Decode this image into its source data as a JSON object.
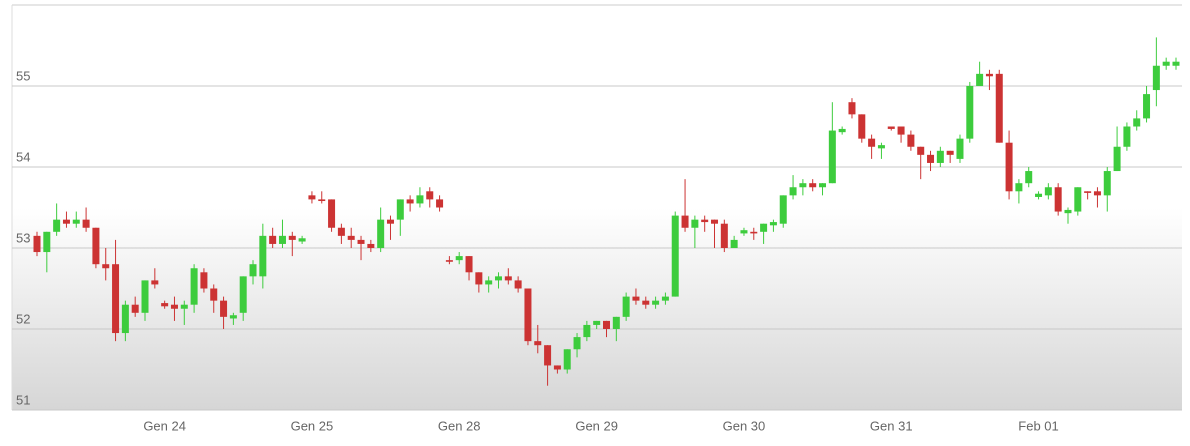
{
  "chart_data": {
    "type": "candlestick",
    "categories": [
      null,
      null,
      null,
      null,
      null,
      null,
      null,
      null,
      null,
      null,
      null,
      null,
      null,
      "Gen 24",
      null,
      null,
      null,
      null,
      null,
      null,
      null,
      null,
      null,
      null,
      null,
      null,
      null,
      null,
      "Gen 25",
      null,
      null,
      null,
      null,
      null,
      null,
      null,
      null,
      null,
      null,
      null,
      null,
      null,
      null,
      "Gen 28",
      null,
      null,
      null,
      null,
      null,
      null,
      null,
      null,
      null,
      null,
      null,
      null,
      null,
      "Gen 29",
      null,
      null,
      null,
      null,
      null,
      null,
      null,
      null,
      null,
      null,
      null,
      null,
      null,
      null,
      "Gen 30",
      null,
      null,
      null,
      null,
      null,
      null,
      null,
      null,
      null,
      null,
      null,
      null,
      null,
      null,
      "Gen 31",
      null,
      null,
      null,
      null,
      null,
      null,
      null,
      null,
      null,
      null,
      null,
      null,
      null,
      null,
      "Feb 01",
      null,
      null,
      null,
      null,
      null,
      null,
      null,
      null,
      null,
      null,
      null,
      null,
      null,
      null
    ],
    "open": [
      53.15,
      52.95,
      53.2,
      53.35,
      53.3,
      53.35,
      53.25,
      52.8,
      52.8,
      51.95,
      52.3,
      52.2,
      52.6,
      52.32,
      52.3,
      52.25,
      52.3,
      52.7,
      52.5,
      52.35,
      52.13,
      52.2,
      52.65,
      52.65,
      53.15,
      53.05,
      53.15,
      53.08,
      53.65,
      53.6,
      53.6,
      53.25,
      53.15,
      53.1,
      53.05,
      53.0,
      53.35,
      53.35,
      53.6,
      53.55,
      53.7,
      53.6,
      52.85,
      52.85,
      52.9,
      52.7,
      52.55,
      52.6,
      52.65,
      52.6,
      52.5,
      51.85,
      51.8,
      51.55,
      51.5,
      51.75,
      51.9,
      52.05,
      52.1,
      52.0,
      52.15,
      52.4,
      52.35,
      52.3,
      52.35,
      52.4,
      53.4,
      53.25,
      53.35,
      53.35,
      53.3,
      53.0,
      53.18,
      53.2,
      53.2,
      53.28,
      53.3,
      53.65,
      53.75,
      53.8,
      53.75,
      53.8,
      54.43,
      54.8,
      54.65,
      54.35,
      54.23,
      54.5,
      54.5,
      54.4,
      54.25,
      54.15,
      54.05,
      54.2,
      54.1,
      54.35,
      55.0,
      55.15,
      55.15,
      54.3,
      53.7,
      53.8,
      53.63,
      53.65,
      53.75,
      53.43,
      53.45,
      53.7,
      53.7,
      53.65,
      53.95,
      54.25,
      54.5,
      54.6,
      54.95,
      55.25,
      55.25
    ],
    "high": [
      53.2,
      53.2,
      53.55,
      53.45,
      53.45,
      53.5,
      53.25,
      53.0,
      53.1,
      52.35,
      52.4,
      52.6,
      52.75,
      52.35,
      52.4,
      52.35,
      52.8,
      52.75,
      52.55,
      52.4,
      52.2,
      52.65,
      52.85,
      53.3,
      53.25,
      53.35,
      53.2,
      53.15,
      53.7,
      53.7,
      53.6,
      53.3,
      53.25,
      53.15,
      53.1,
      53.5,
      53.4,
      53.6,
      53.65,
      53.75,
      53.75,
      53.65,
      52.9,
      52.95,
      52.9,
      52.7,
      52.65,
      52.7,
      52.75,
      52.65,
      52.5,
      52.05,
      51.8,
      51.55,
      51.75,
      51.95,
      52.1,
      52.1,
      52.1,
      52.15,
      52.45,
      52.5,
      52.4,
      52.4,
      52.45,
      53.45,
      53.85,
      53.4,
      53.4,
      53.35,
      53.35,
      53.15,
      53.25,
      53.25,
      53.3,
      53.35,
      53.65,
      53.9,
      53.85,
      53.85,
      53.8,
      54.8,
      54.5,
      54.85,
      54.65,
      54.4,
      54.3,
      54.5,
      54.5,
      54.45,
      54.25,
      54.2,
      54.25,
      54.2,
      54.4,
      55.05,
      55.3,
      55.2,
      55.2,
      54.45,
      53.85,
      54.0,
      53.7,
      53.8,
      53.8,
      53.5,
      53.75,
      53.7,
      53.75,
      54.0,
      54.5,
      54.55,
      54.7,
      55.0,
      55.6,
      55.35,
      55.35
    ],
    "low": [
      52.9,
      52.7,
      53.15,
      53.25,
      53.25,
      53.2,
      52.75,
      52.6,
      51.85,
      51.85,
      52.15,
      52.1,
      52.5,
      52.25,
      52.1,
      52.05,
      52.2,
      52.45,
      52.2,
      52.0,
      52.05,
      52.1,
      52.55,
      52.5,
      53.0,
      53.0,
      52.9,
      53.05,
      53.55,
      53.55,
      53.2,
      53.05,
      53.0,
      52.85,
      52.95,
      52.95,
      53.1,
      53.15,
      53.45,
      53.5,
      53.5,
      53.45,
      52.8,
      52.8,
      52.6,
      52.45,
      52.45,
      52.5,
      52.55,
      52.45,
      51.8,
      51.7,
      51.3,
      51.45,
      51.45,
      51.65,
      51.85,
      52.0,
      51.9,
      51.85,
      52.1,
      52.3,
      52.25,
      52.25,
      52.3,
      52.4,
      53.2,
      53.0,
      53.2,
      53.0,
      52.95,
      53.0,
      53.15,
      53.1,
      53.05,
      53.2,
      53.25,
      53.6,
      53.65,
      53.7,
      53.65,
      53.8,
      54.4,
      54.6,
      54.3,
      54.1,
      54.1,
      54.45,
      54.3,
      54.2,
      53.85,
      53.95,
      54.0,
      54.05,
      54.05,
      54.3,
      55.0,
      54.95,
      54.3,
      53.6,
      53.55,
      53.75,
      53.6,
      53.6,
      53.4,
      53.3,
      53.4,
      53.6,
      53.5,
      53.45,
      53.95,
      54.2,
      54.45,
      54.55,
      54.75,
      55.2,
      55.2
    ],
    "close": [
      52.95,
      53.2,
      53.35,
      53.3,
      53.35,
      53.25,
      52.8,
      52.75,
      51.95,
      52.3,
      52.2,
      52.6,
      52.55,
      52.28,
      52.25,
      52.3,
      52.75,
      52.5,
      52.35,
      52.15,
      52.17,
      52.65,
      52.8,
      53.15,
      53.05,
      53.15,
      53.1,
      53.12,
      53.6,
      53.58,
      53.25,
      53.15,
      53.1,
      53.05,
      53.0,
      53.35,
      53.3,
      53.6,
      53.55,
      53.65,
      53.6,
      53.5,
      52.83,
      52.9,
      52.7,
      52.55,
      52.6,
      52.65,
      52.6,
      52.5,
      51.85,
      51.8,
      51.55,
      51.5,
      51.75,
      51.9,
      52.05,
      52.1,
      52.0,
      52.15,
      52.4,
      52.35,
      52.3,
      52.35,
      52.4,
      53.4,
      53.25,
      53.35,
      53.32,
      53.3,
      53.0,
      53.1,
      53.22,
      53.18,
      53.3,
      53.32,
      53.65,
      53.75,
      53.8,
      53.75,
      53.8,
      54.45,
      54.47,
      54.65,
      54.35,
      54.25,
      54.27,
      54.47,
      54.4,
      54.25,
      54.15,
      54.05,
      54.2,
      54.15,
      54.35,
      55.0,
      55.15,
      55.12,
      54.3,
      53.7,
      53.8,
      53.95,
      53.67,
      53.75,
      53.45,
      53.47,
      53.75,
      53.68,
      53.65,
      53.95,
      54.25,
      54.5,
      54.6,
      54.9,
      55.25,
      55.3,
      55.3
    ],
    "up_color": "#3dcc3d",
    "down_color": "#cc3333",
    "ylim": [
      51,
      56
    ],
    "yticks": [
      51,
      52,
      53,
      54,
      55
    ],
    "grid": true
  }
}
